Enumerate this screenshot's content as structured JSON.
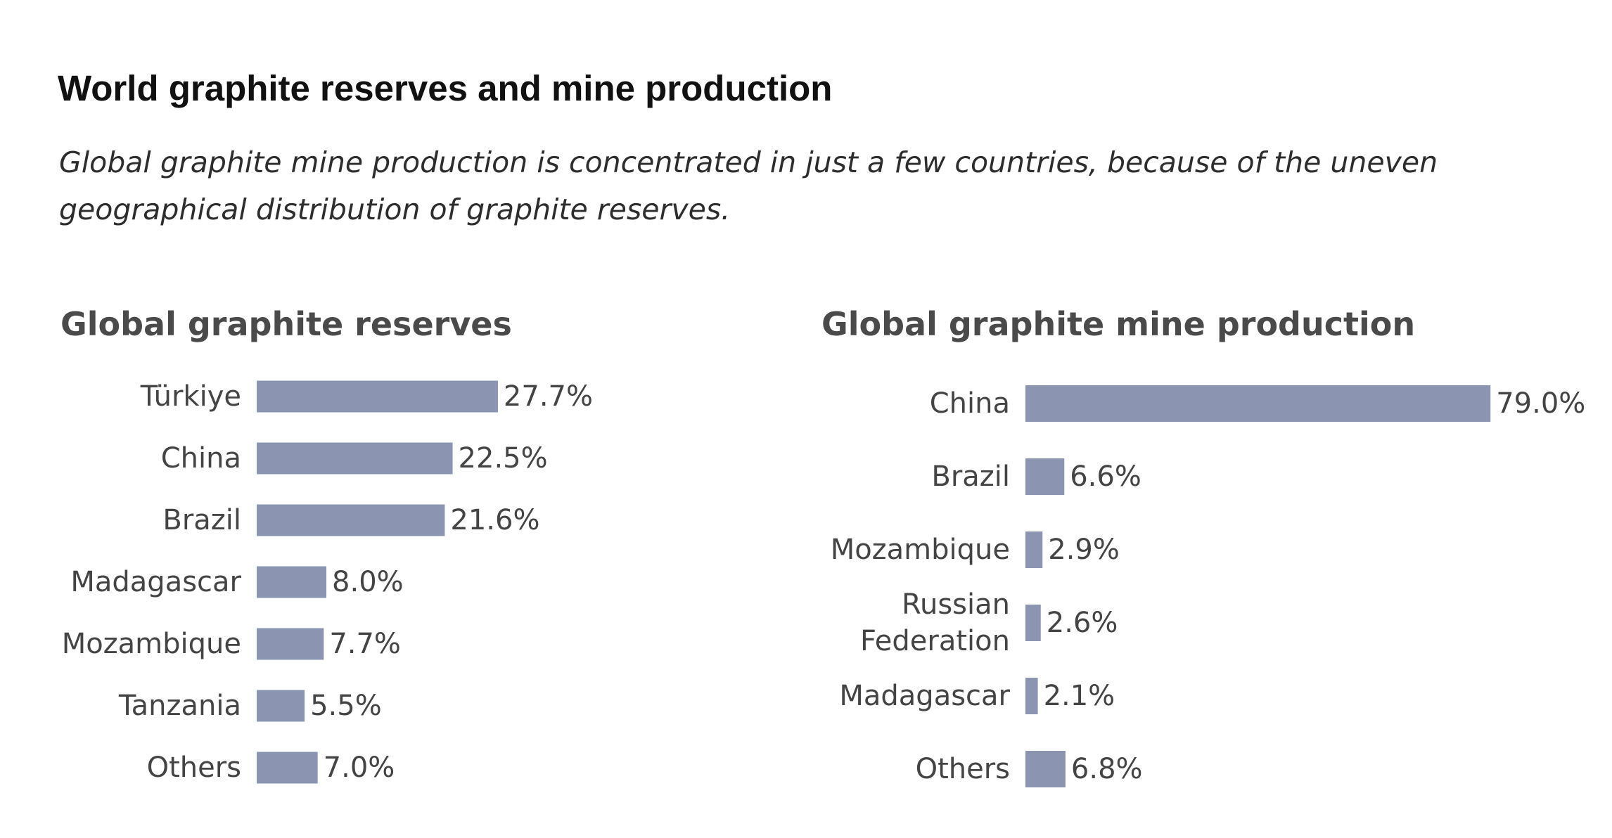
{
  "page": {
    "title": "World graphite reserves and mine production",
    "subtitle": "Global graphite mine production is concentrated in just a few countries, because of the uneven geographical distribution of graphite reserves."
  },
  "colors": {
    "bar": "#8b94b0",
    "text": "#444444"
  },
  "chart_data": [
    {
      "type": "bar",
      "orientation": "horizontal",
      "title": "Global graphite reserves",
      "categories": [
        "Türkiye",
        "China",
        "Brazil",
        "Madagascar",
        "Mozambique",
        "Tanzania",
        "Others"
      ],
      "values": [
        27.7,
        22.5,
        21.6,
        8.0,
        7.7,
        5.5,
        7.0
      ],
      "data_labels": [
        "27.7%",
        "22.5%",
        "21.6%",
        "8.0%",
        "7.7%",
        "5.5%",
        "7.0%"
      ],
      "xlim": [
        0,
        100
      ],
      "grid": false
    },
    {
      "type": "bar",
      "orientation": "horizontal",
      "title": "Global graphite mine production",
      "categories": [
        "China",
        "Brazil",
        "Mozambique",
        "Russian\nFederation",
        "Madagascar",
        "Others"
      ],
      "values": [
        79.0,
        6.6,
        2.9,
        2.6,
        2.1,
        6.8
      ],
      "data_labels": [
        "79.0%",
        "6.6%",
        "2.9%",
        "2.6%",
        "2.1%",
        "6.8%"
      ],
      "xlim": [
        0,
        100
      ],
      "grid": false
    }
  ]
}
